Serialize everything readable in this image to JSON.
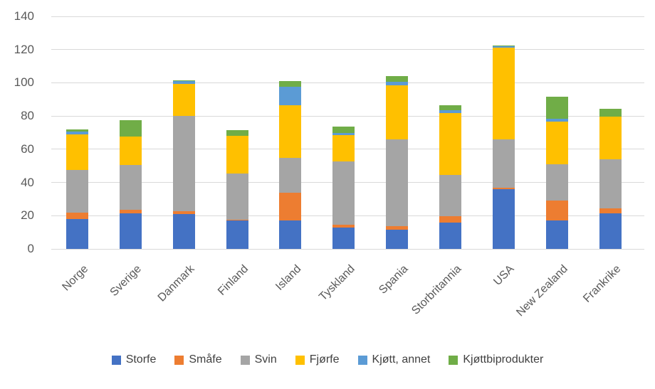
{
  "chart_data": {
    "type": "bar",
    "stacked": true,
    "title": "",
    "xlabel": "",
    "ylabel": "",
    "grid": true,
    "legend_position": "bottom",
    "ylim": [
      0,
      140
    ],
    "y_ticks": [
      0,
      20,
      40,
      60,
      80,
      100,
      120,
      140
    ],
    "categories": [
      "Norge",
      "Sverige",
      "Danmark",
      "Finland",
      "Island",
      "Tyskland",
      "Spania",
      "Storbritannia",
      "USA",
      "New Zealand",
      "Frankrike"
    ],
    "series": [
      {
        "name": "Storfe",
        "color": "#4472C4",
        "values": [
          18,
          21.5,
          21,
          17,
          17,
          13,
          11.5,
          16,
          36,
          17,
          21.5
        ]
      },
      {
        "name": "Småfe",
        "color": "#ED7D31",
        "values": [
          4,
          2,
          1.5,
          0.5,
          17,
          1.5,
          2,
          3.5,
          1,
          12,
          3
        ]
      },
      {
        "name": "Svin",
        "color": "#A5A5A5",
        "values": [
          25.5,
          27,
          57.5,
          28,
          21,
          38,
          52.5,
          25,
          29,
          22,
          29.5
        ]
      },
      {
        "name": "Fjørfe",
        "color": "#FFC000",
        "values": [
          21.5,
          17,
          19.5,
          22.5,
          31.5,
          16,
          32.5,
          37.5,
          55,
          25.5,
          25.5
        ]
      },
      {
        "name": "Kjøtt, annet",
        "color": "#5B9BD5",
        "values": [
          1.5,
          0,
          1.5,
          0,
          11,
          1.5,
          2,
          1.5,
          1,
          2,
          0
        ]
      },
      {
        "name": "Kjøttbiprodukter",
        "color": "#70AD47",
        "values": [
          1.5,
          10,
          0.5,
          3.5,
          3.5,
          3.5,
          3.5,
          3,
          0.5,
          13,
          5
        ]
      }
    ]
  },
  "colors": {
    "gridline": "#d9d9d9",
    "axis_text": "#595959",
    "legend_text": "#404040",
    "background": "#ffffff"
  }
}
